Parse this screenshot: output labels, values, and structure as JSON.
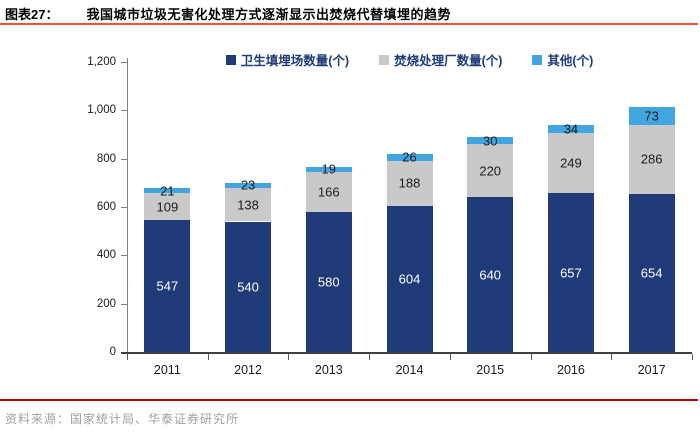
{
  "header": {
    "label": "图表27：",
    "title": "我国城市垃圾无害化处理方式逐渐显示出焚烧代替填埋的趋势"
  },
  "chart_data": {
    "type": "bar",
    "stacked": true,
    "categories": [
      "2011",
      "2012",
      "2013",
      "2014",
      "2015",
      "2016",
      "2017"
    ],
    "series": [
      {
        "name": "卫生填埋场数量(个)",
        "values": [
          547,
          540,
          580,
          604,
          640,
          657,
          654
        ],
        "color": "#1F3B78",
        "label_color": "#FFFFFF"
      },
      {
        "name": "焚烧处理厂数量(个)",
        "values": [
          109,
          138,
          166,
          188,
          220,
          249,
          286
        ],
        "color": "#C9C9C9",
        "label_color": "#1A1A1A"
      },
      {
        "name": "其他(个)",
        "values": [
          21,
          23,
          19,
          26,
          30,
          34,
          73
        ],
        "color": "#41A6E0",
        "label_color": "#1A1A1A"
      }
    ],
    "ylim": [
      0,
      1200
    ],
    "ytick_step": 200,
    "yticks": [
      "0",
      "200",
      "400",
      "600",
      "800",
      "1,000",
      "1,200"
    ],
    "grid": false,
    "legend_position": "top-center"
  },
  "source": {
    "text": "资料来源：国家统计局、华泰证券研究所"
  },
  "colors": {
    "bar_landfill": "#1F3B78",
    "bar_incineration": "#C9C9C9",
    "bar_other": "#41A6E0",
    "title_rule": "#E8523D",
    "source_rule": "#C00000",
    "axis": "#404040",
    "legend_text": "#1F3B78",
    "source_text": "#A0A0A0"
  }
}
